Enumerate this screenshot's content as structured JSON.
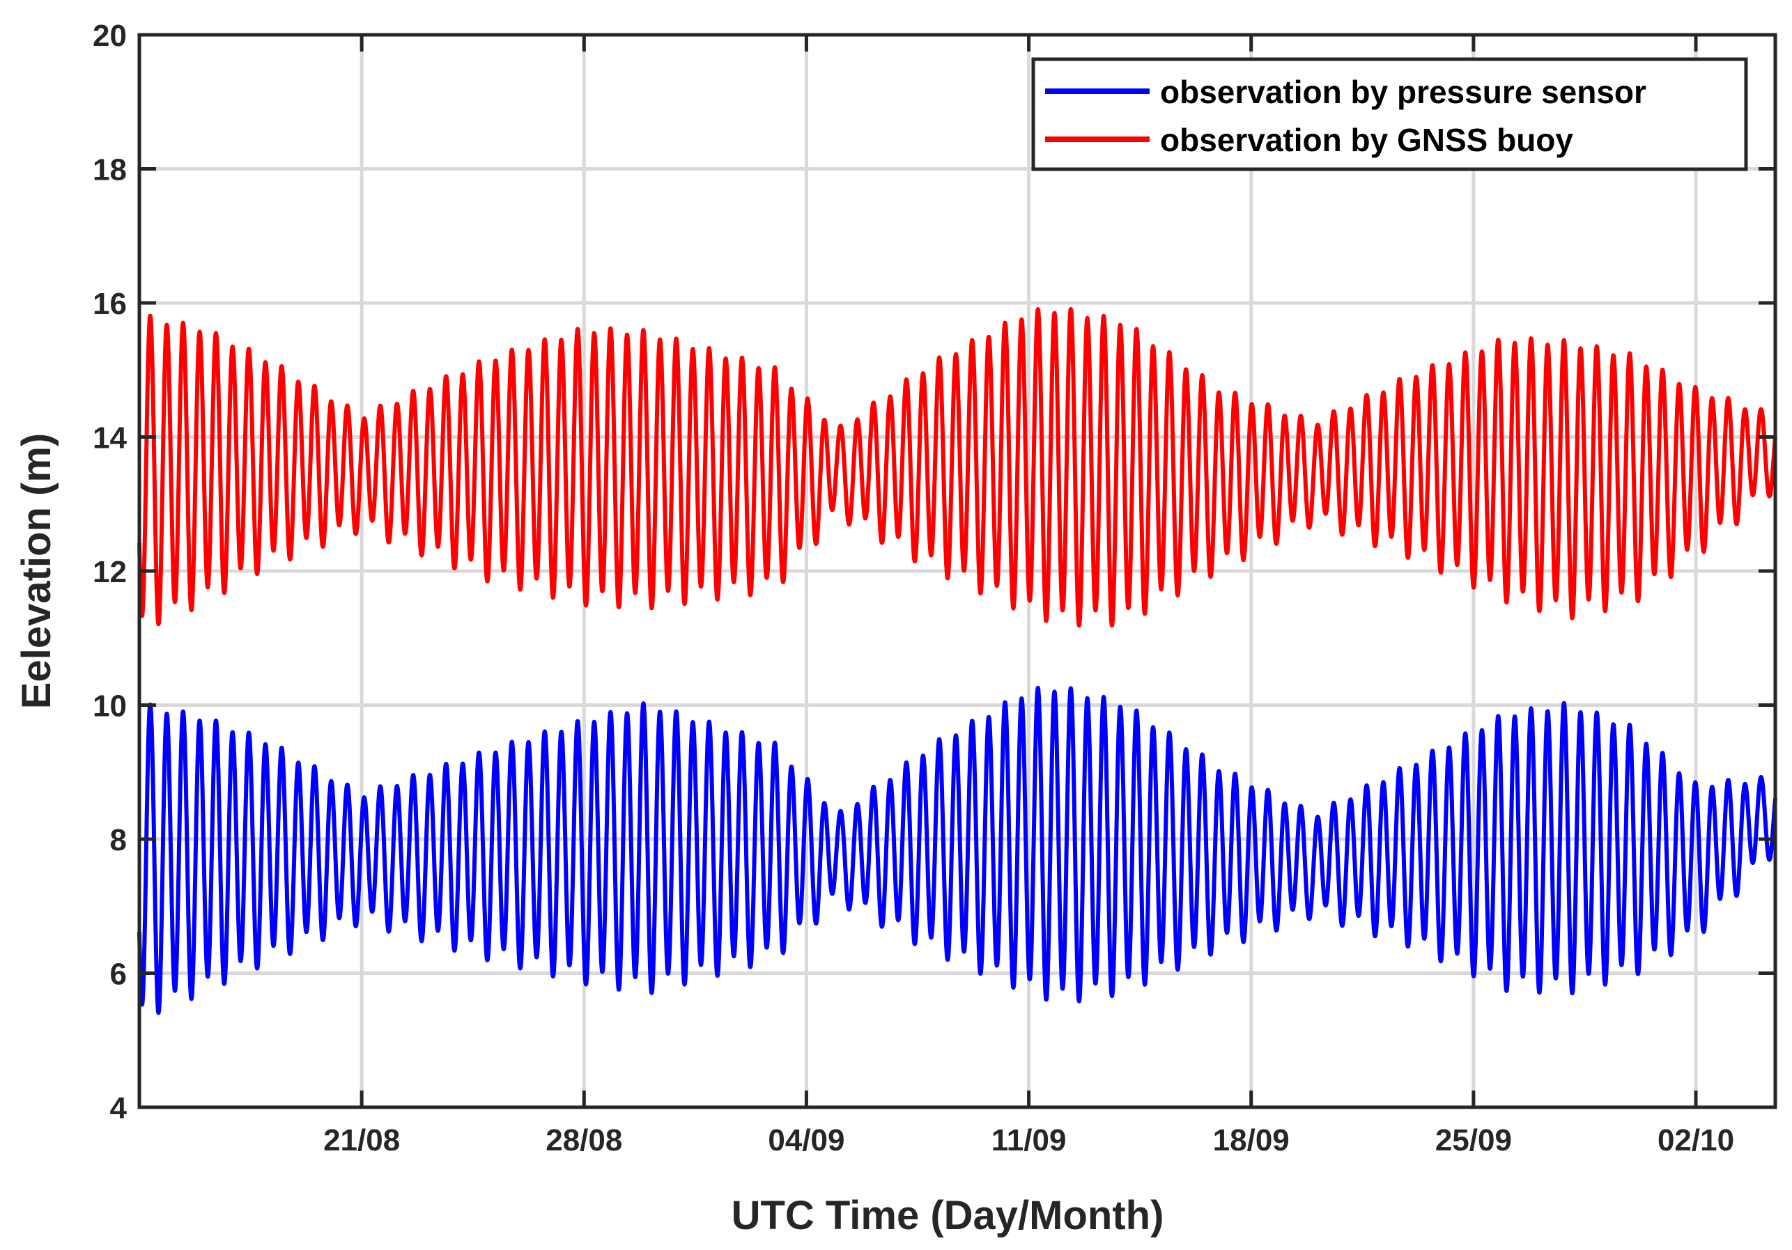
{
  "chart_data": {
    "type": "line",
    "title": "",
    "xlabel": "UTC Time (Day/Month)",
    "ylabel": "Eelevation (m)",
    "ylim": [
      4,
      20
    ],
    "yticks": [
      4,
      6,
      8,
      10,
      12,
      14,
      16,
      18,
      20
    ],
    "xlim_days": [
      0,
      51.5
    ],
    "x_ticks": [
      {
        "day": 7,
        "label": "21/08"
      },
      {
        "day": 14,
        "label": "28/08"
      },
      {
        "day": 21,
        "label": "04/09"
      },
      {
        "day": 28,
        "label": "11/09"
      },
      {
        "day": 35,
        "label": "18/09"
      },
      {
        "day": 42,
        "label": "25/09"
      },
      {
        "day": 49,
        "label": "02/10"
      }
    ],
    "grid": true,
    "legend_position": "top-right",
    "series": [
      {
        "name": "observation by pressure sensor",
        "color": "#0000ff",
        "x_days": [
          0,
          2,
          4,
          7,
          11,
          14,
          16,
          20,
          22,
          25,
          28,
          29,
          31,
          34,
          37,
          40,
          43,
          45,
          47,
          49,
          51.5
        ],
        "mean": [
          7.7,
          7.8,
          7.85,
          7.75,
          7.8,
          7.85,
          7.9,
          7.85,
          7.75,
          7.9,
          8.0,
          7.95,
          7.9,
          7.75,
          7.65,
          7.8,
          7.85,
          7.9,
          7.85,
          7.7,
          8.4
        ],
        "amplitude": [
          2.3,
          2.0,
          1.6,
          0.9,
          1.5,
          1.9,
          2.1,
          1.55,
          0.6,
          1.5,
          2.2,
          2.3,
          2.1,
          1.3,
          0.7,
          1.3,
          2.0,
          2.1,
          1.8,
          1.1,
          0.5
        ]
      },
      {
        "name": "observation by GNSS buoy",
        "color": "#ff0000",
        "x_days": [
          0,
          2,
          4,
          7,
          11,
          14,
          16,
          20,
          22,
          25,
          28,
          29,
          31,
          34,
          37,
          40,
          43,
          45,
          47,
          49,
          51.5
        ],
        "mean": [
          13.5,
          13.6,
          13.65,
          13.5,
          13.55,
          13.6,
          13.55,
          13.4,
          13.5,
          13.6,
          13.65,
          13.6,
          13.5,
          13.4,
          13.5,
          13.6,
          13.55,
          13.4,
          13.4,
          13.5,
          13.8
        ],
        "amplitude": [
          2.3,
          2.0,
          1.5,
          0.8,
          1.6,
          2.0,
          2.0,
          1.6,
          0.6,
          1.5,
          2.2,
          2.3,
          2.2,
          1.3,
          0.7,
          1.3,
          1.9,
          2.0,
          1.8,
          1.2,
          0.5
        ]
      }
    ],
    "semidiurnal_period_days": 0.5175
  }
}
